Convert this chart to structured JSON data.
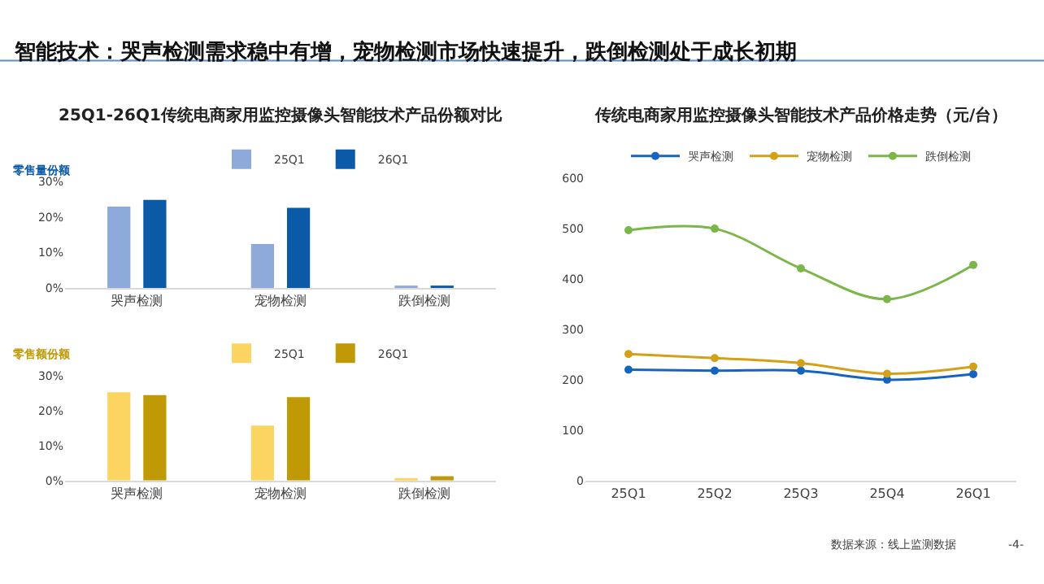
{
  "chart_data": [
    {
      "type": "bar",
      "title": "25Q1-26Q1传统电商家用监控摄像头智能技术产品份额对比",
      "ylabel": "零售量份额",
      "annotations": [
        "智能技术：哭声检测需求稳中有增，宠物检测市场快速提升，跌倒检测处于成长初期"
      ],
      "categories": [
        "哭声检测",
        "宠物检测",
        "跌倒检测"
      ],
      "series": [
        {
          "name": "25Q1",
          "color": "#8eaadb",
          "values": [
            22.9,
            12.4,
            0.4
          ]
        },
        {
          "name": "26Q1",
          "color": "#0b5aa8",
          "values": [
            24.8,
            22.6,
            0.6
          ]
        }
      ],
      "ylim": [
        0,
        30
      ],
      "yticks": [
        {
          "value": 0,
          "label": "0%"
        },
        {
          "value": 10,
          "label": "10%"
        },
        {
          "value": 20,
          "label": "20%"
        },
        {
          "value": 30,
          "label": "30%"
        }
      ],
      "grid": false,
      "legend": "top"
    },
    {
      "type": "bar",
      "ylabel": "零售额份额",
      "categories": [
        "哭声检测",
        "宠物检测",
        "跌倒检测"
      ],
      "series": [
        {
          "name": "25Q1",
          "color": "#fcd462",
          "values": [
            25.2,
            15.7,
            0.4
          ]
        },
        {
          "name": "26Q1",
          "color": "#c09a06",
          "values": [
            24.4,
            23.8,
            1.2
          ]
        }
      ],
      "ylim": [
        0,
        30
      ],
      "yticks": [
        {
          "value": 0,
          "label": "0%"
        },
        {
          "value": 10,
          "label": "10%"
        },
        {
          "value": 20,
          "label": "20%"
        },
        {
          "value": 30,
          "label": "30%"
        }
      ],
      "grid": false,
      "legend": "top"
    },
    {
      "type": "line",
      "title": "传统电商家用监控摄像头智能技术产品价格走势（元/台）",
      "annotations": [
        "数据来源：线上监测数据",
        "-4-"
      ],
      "categories": [
        "25Q1",
        "25Q2",
        "25Q3",
        "25Q4",
        "26Q1"
      ],
      "series": [
        {
          "name": "哭声检测",
          "color": "#1565c0",
          "values": [
            220,
            218,
            218,
            200,
            211
          ]
        },
        {
          "name": "宠物检测",
          "color": "#d4a017",
          "values": [
            251,
            243,
            233,
            212,
            226
          ]
        },
        {
          "name": "跌倒检测",
          "color": "#7ab648",
          "values": [
            497,
            500,
            421,
            360,
            428
          ]
        }
      ],
      "ylim": [
        0,
        600
      ],
      "yticks": [
        0,
        100,
        200,
        300,
        400,
        500,
        600
      ],
      "grid": false,
      "legend": "top",
      "marker": "circle",
      "line_style": "solid"
    }
  ]
}
